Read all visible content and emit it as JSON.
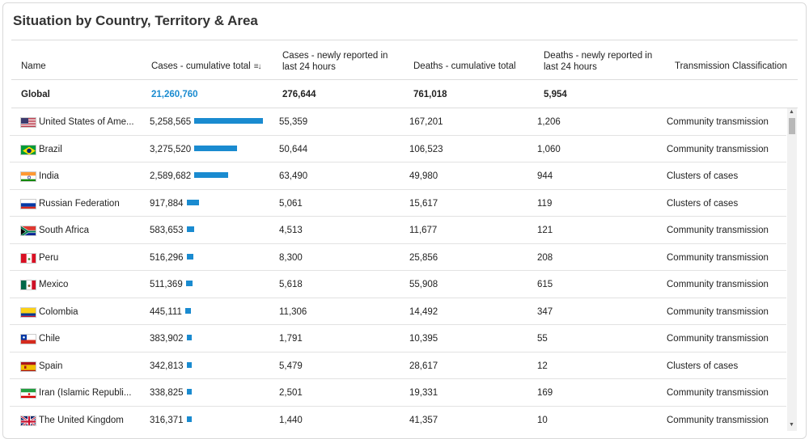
{
  "title": "Situation by Country, Territory & Area",
  "headers": {
    "name": "Name",
    "cases_total": "Cases - cumulative total",
    "cases_new": "Cases - newly reported in last 24 hours",
    "deaths_total": "Deaths - cumulative total",
    "deaths_new": "Deaths - newly reported in last 24 hours",
    "transmission": "Transmission Classification"
  },
  "global": {
    "name": "Global",
    "cases_total": "21,260,760",
    "cases_new": "276,644",
    "deaths_total": "761,018",
    "deaths_new": "5,954"
  },
  "accent_color": "#1a8bd0",
  "rows": [
    {
      "name": "United States of Ame...",
      "flag": "us-flag-icon",
      "cases_total": "5,258,565",
      "cases_value": 5258565,
      "cases_new": "55,359",
      "deaths_total": "167,201",
      "deaths_new": "1,206",
      "transmission": "Community transmission"
    },
    {
      "name": "Brazil",
      "flag": "brazil-flag-icon",
      "cases_total": "3,275,520",
      "cases_value": 3275520,
      "cases_new": "50,644",
      "deaths_total": "106,523",
      "deaths_new": "1,060",
      "transmission": "Community transmission"
    },
    {
      "name": "India",
      "flag": "india-flag-icon",
      "cases_total": "2,589,682",
      "cases_value": 2589682,
      "cases_new": "63,490",
      "deaths_total": "49,980",
      "deaths_new": "944",
      "transmission": "Clusters of cases"
    },
    {
      "name": "Russian Federation",
      "flag": "russia-flag-icon",
      "cases_total": "917,884",
      "cases_value": 917884,
      "cases_new": "5,061",
      "deaths_total": "15,617",
      "deaths_new": "119",
      "transmission": "Clusters of cases"
    },
    {
      "name": "South Africa",
      "flag": "south-africa-flag-icon",
      "cases_total": "583,653",
      "cases_value": 583653,
      "cases_new": "4,513",
      "deaths_total": "11,677",
      "deaths_new": "121",
      "transmission": "Community transmission"
    },
    {
      "name": "Peru",
      "flag": "peru-flag-icon",
      "cases_total": "516,296",
      "cases_value": 516296,
      "cases_new": "8,300",
      "deaths_total": "25,856",
      "deaths_new": "208",
      "transmission": "Community transmission"
    },
    {
      "name": "Mexico",
      "flag": "mexico-flag-icon",
      "cases_total": "511,369",
      "cases_value": 511369,
      "cases_new": "5,618",
      "deaths_total": "55,908",
      "deaths_new": "615",
      "transmission": "Community transmission"
    },
    {
      "name": "Colombia",
      "flag": "colombia-flag-icon",
      "cases_total": "445,111",
      "cases_value": 445111,
      "cases_new": "11,306",
      "deaths_total": "14,492",
      "deaths_new": "347",
      "transmission": "Community transmission"
    },
    {
      "name": "Chile",
      "flag": "chile-flag-icon",
      "cases_total": "383,902",
      "cases_value": 383902,
      "cases_new": "1,791",
      "deaths_total": "10,395",
      "deaths_new": "55",
      "transmission": "Community transmission"
    },
    {
      "name": "Spain",
      "flag": "spain-flag-icon",
      "cases_total": "342,813",
      "cases_value": 342813,
      "cases_new": "5,479",
      "deaths_total": "28,617",
      "deaths_new": "12",
      "transmission": "Clusters of cases"
    },
    {
      "name": "Iran (Islamic Republi...",
      "flag": "iran-flag-icon",
      "cases_total": "338,825",
      "cases_value": 338825,
      "cases_new": "2,501",
      "deaths_total": "19,331",
      "deaths_new": "169",
      "transmission": "Community transmission"
    },
    {
      "name": "The United Kingdom",
      "flag": "uk-flag-icon",
      "cases_total": "316,371",
      "cases_value": 316371,
      "cases_new": "1,440",
      "deaths_total": "41,357",
      "deaths_new": "10",
      "transmission": "Community transmission"
    }
  ]
}
